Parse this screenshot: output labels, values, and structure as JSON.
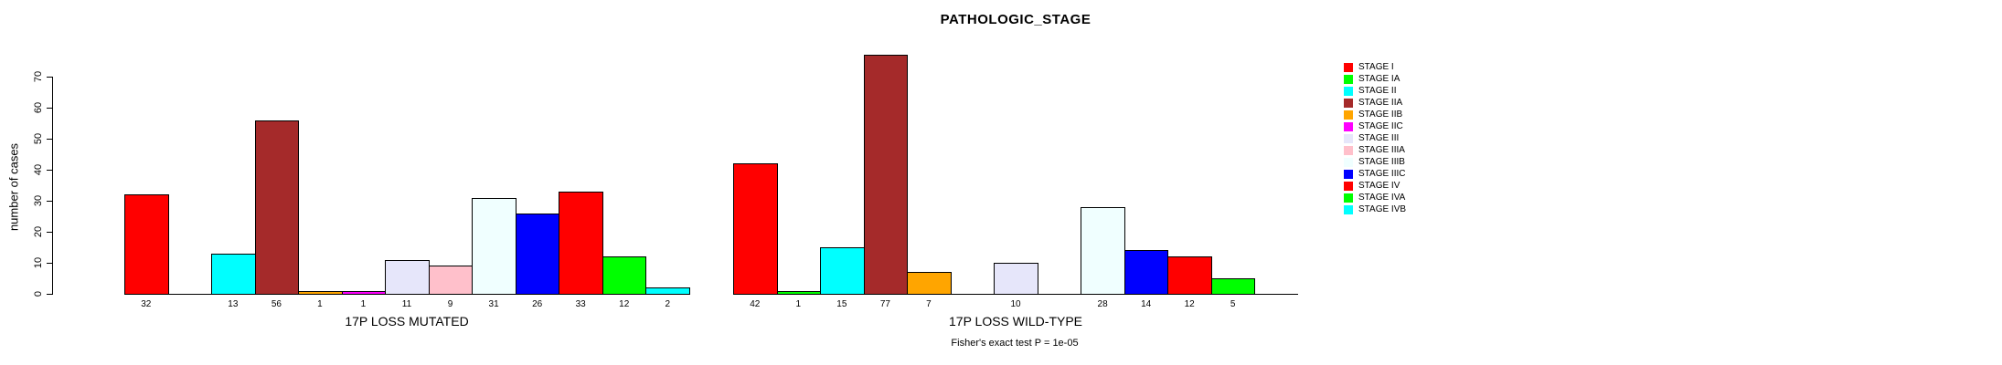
{
  "chart_data": {
    "type": "bar",
    "title": "PATHOLOGIC_STAGE",
    "ylabel": "number of cases",
    "ylim": [
      0,
      70
    ],
    "yticks": [
      0,
      10,
      20,
      30,
      40,
      50,
      60,
      70
    ],
    "grid": false,
    "legend_position": "right",
    "categories": [
      "STAGE I",
      "STAGE IA",
      "STAGE II",
      "STAGE IIA",
      "STAGE IIB",
      "STAGE IIC",
      "STAGE III",
      "STAGE IIIA",
      "STAGE IIIB",
      "STAGE IIIC",
      "STAGE IV",
      "STAGE IVA",
      "STAGE IVB"
    ],
    "colors": [
      "#FF0000",
      "#00FF00",
      "#00FFFF",
      "#A52A2A",
      "#FFA500",
      "#FF00FF",
      "#E6E6FA",
      "#FFC0CB",
      "#F0FFFF",
      "#0000FF",
      "#FF0000",
      "#00FF00",
      "#00FFFF"
    ],
    "series": [
      {
        "name": "17P LOSS MUTATED",
        "values": [
          32,
          0,
          13,
          56,
          1,
          1,
          11,
          9,
          31,
          26,
          33,
          12,
          2
        ]
      },
      {
        "name": "17P LOSS WILD-TYPE",
        "values": [
          42,
          1,
          15,
          77,
          7,
          0,
          10,
          0,
          28,
          14,
          12,
          5,
          0
        ]
      }
    ],
    "bar_labels_shown_for_zero": false,
    "annotation": "Fisher's exact test P = 1e-05"
  }
}
